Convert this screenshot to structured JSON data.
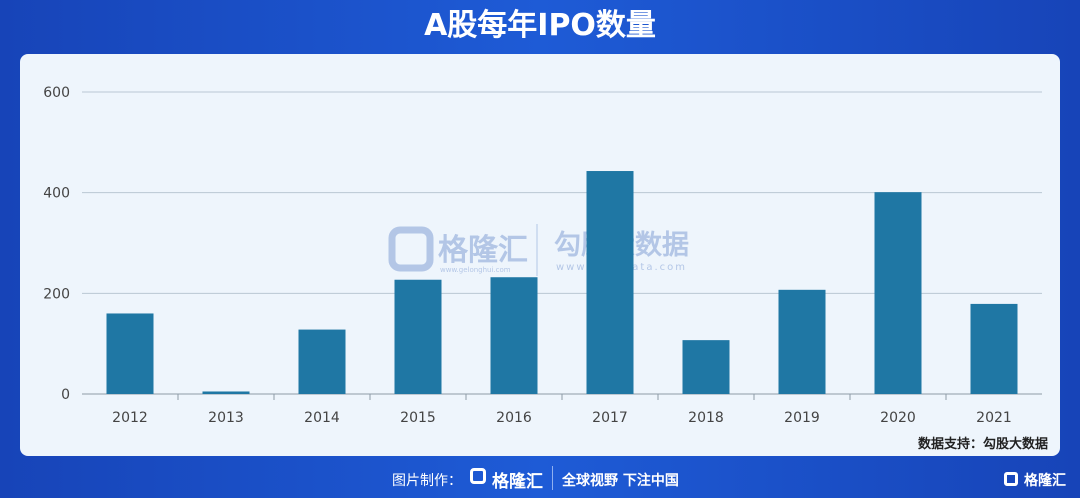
{
  "title": "A股每年IPO数量",
  "source": "数据支持：勾股大数据",
  "watermark": {
    "brand": "格隆汇",
    "brand_url": "www.gelonghui.com",
    "partner": "勾股大数据",
    "partner_url": "www.gogudata.com"
  },
  "footer": {
    "credit": "图片制作：",
    "logo": "格隆汇",
    "slogan": "全球视野 下注中国",
    "corner_logo": "格隆汇"
  },
  "colors": {
    "bar": "#1f77a4",
    "header_bg": "#1d55d0",
    "panel_bg": "#eef5fc",
    "grid": "#b9c7d3"
  },
  "chart_data": {
    "type": "bar",
    "categories": [
      "2012",
      "2013",
      "2014",
      "2015",
      "2016",
      "2017",
      "2018",
      "2019",
      "2020",
      "2021"
    ],
    "values": [
      160,
      5,
      128,
      227,
      232,
      443,
      107,
      207,
      401,
      179
    ],
    "ylim": [
      0,
      600
    ],
    "yticks": [
      "0",
      "200",
      "400",
      "600"
    ],
    "grid": true,
    "legend": "none"
  }
}
